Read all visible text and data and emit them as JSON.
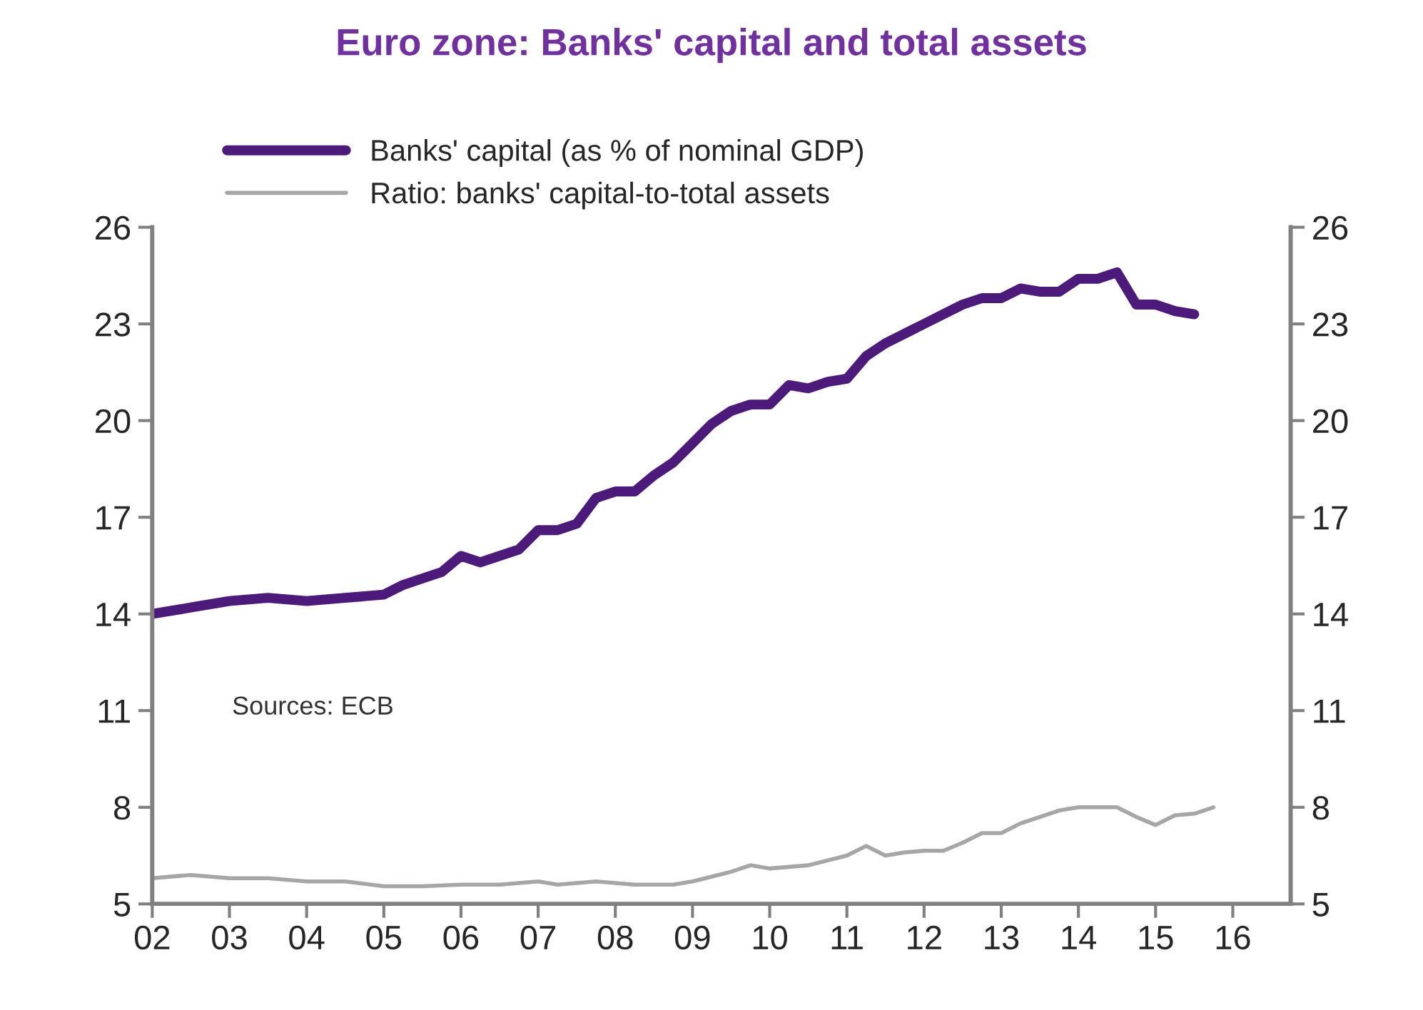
{
  "chart_data": {
    "type": "line",
    "title": "Euro zone: Banks' capital and total assets",
    "annotations": [
      {
        "text": "Sources: ECB"
      }
    ],
    "series": [
      {
        "name": "Banks' capital (as % of nominal GDP)",
        "color": "#4b1a7a",
        "x": [
          2002.0,
          2002.5,
          2003.0,
          2003.5,
          2004.0,
          2004.5,
          2005.0,
          2005.25,
          2005.5,
          2005.75,
          2006.0,
          2006.25,
          2006.5,
          2006.75,
          2007.0,
          2007.25,
          2007.5,
          2007.75,
          2008.0,
          2008.25,
          2008.5,
          2008.75,
          2009.0,
          2009.25,
          2009.5,
          2009.75,
          2010.0,
          2010.25,
          2010.5,
          2010.75,
          2011.0,
          2011.25,
          2011.5,
          2011.75,
          2012.0,
          2012.25,
          2012.5,
          2012.75,
          2013.0,
          2013.25,
          2013.5,
          2013.75,
          2014.0,
          2014.25,
          2014.5,
          2014.75,
          2015.0,
          2015.25,
          2015.5
        ],
        "values": [
          14.0,
          14.2,
          14.4,
          14.5,
          14.4,
          14.5,
          14.6,
          14.9,
          15.1,
          15.3,
          15.8,
          15.6,
          15.8,
          16.0,
          16.6,
          16.6,
          16.8,
          17.6,
          17.8,
          17.8,
          18.3,
          18.7,
          19.3,
          19.9,
          20.3,
          20.5,
          20.5,
          21.1,
          21.0,
          21.2,
          21.3,
          22.0,
          22.4,
          22.7,
          23.0,
          23.3,
          23.6,
          23.8,
          23.8,
          24.1,
          24.0,
          24.0,
          24.4,
          24.4,
          24.6,
          23.6,
          23.6,
          23.4,
          23.3
        ]
      },
      {
        "name": "Ratio: banks' capital-to-total assets",
        "color": "#a6a6a6",
        "x": [
          2002.0,
          2002.5,
          2003.0,
          2003.5,
          2004.0,
          2004.5,
          2005.0,
          2005.5,
          2006.0,
          2006.5,
          2007.0,
          2007.25,
          2007.75,
          2008.25,
          2008.75,
          2009.0,
          2009.5,
          2009.75,
          2010.0,
          2010.5,
          2011.0,
          2011.25,
          2011.5,
          2011.75,
          2012.0,
          2012.25,
          2012.5,
          2012.75,
          2013.0,
          2013.25,
          2013.5,
          2013.75,
          2014.0,
          2014.5,
          2014.75,
          2015.0,
          2015.25,
          2015.5,
          2015.75
        ],
        "values": [
          5.8,
          5.9,
          5.8,
          5.8,
          5.7,
          5.7,
          5.55,
          5.55,
          5.6,
          5.6,
          5.7,
          5.6,
          5.7,
          5.6,
          5.6,
          5.7,
          6.0,
          6.2,
          6.1,
          6.2,
          6.5,
          6.8,
          6.5,
          6.6,
          6.65,
          6.65,
          6.9,
          7.2,
          7.2,
          7.5,
          7.7,
          7.9,
          8.0,
          8.0,
          7.7,
          7.45,
          7.75,
          7.8,
          8.0
        ]
      }
    ],
    "xlim": [
      2002,
      2016.75
    ],
    "xticks": [
      {
        "value": 2002,
        "label": "02"
      },
      {
        "value": 2003,
        "label": "03"
      },
      {
        "value": 2004,
        "label": "04"
      },
      {
        "value": 2005,
        "label": "05"
      },
      {
        "value": 2006,
        "label": "06"
      },
      {
        "value": 2007,
        "label": "07"
      },
      {
        "value": 2008,
        "label": "08"
      },
      {
        "value": 2009,
        "label": "09"
      },
      {
        "value": 2010,
        "label": "10"
      },
      {
        "value": 2011,
        "label": "11"
      },
      {
        "value": 2012,
        "label": "12"
      },
      {
        "value": 2013,
        "label": "13"
      },
      {
        "value": 2014,
        "label": "14"
      },
      {
        "value": 2015,
        "label": "15"
      },
      {
        "value": 2016,
        "label": "16"
      }
    ],
    "ylim": [
      5,
      26
    ],
    "yticks": [
      5,
      8,
      11,
      14,
      17,
      20,
      23,
      26
    ],
    "y2lim": [
      5,
      26
    ],
    "y2ticks": [
      5,
      8,
      11,
      14,
      17,
      20,
      23,
      26
    ],
    "legend": "top left",
    "grid": false,
    "line_style": "solid",
    "marker": "none"
  }
}
